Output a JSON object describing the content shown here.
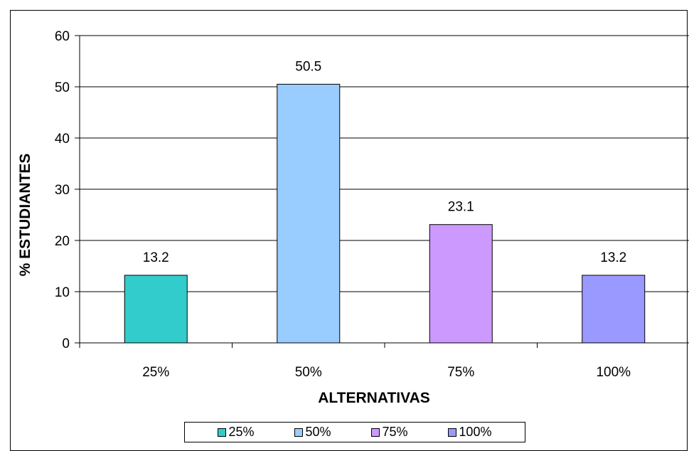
{
  "chart_data": {
    "type": "bar",
    "title": "",
    "xlabel": "ALTERNATIVAS",
    "ylabel": "% ESTUDIANTES",
    "categories": [
      "25%",
      "50%",
      "75%",
      "100%"
    ],
    "values": [
      13.2,
      50.5,
      23.1,
      13.2
    ],
    "value_labels": [
      "13.2",
      "50.5",
      "23.1",
      "13.2"
    ],
    "colors": [
      "#33CCCC",
      "#99CCFF",
      "#CC99FF",
      "#9999FF"
    ],
    "ylim": [
      0,
      60
    ],
    "yticks": [
      0,
      10,
      20,
      30,
      40,
      50,
      60
    ],
    "ytick_labels": [
      "0",
      "10",
      "20",
      "30",
      "40",
      "50",
      "60"
    ],
    "grid": true,
    "legend_position": "bottom",
    "legend": [
      "25%",
      "50%",
      "75%",
      "100%"
    ]
  }
}
